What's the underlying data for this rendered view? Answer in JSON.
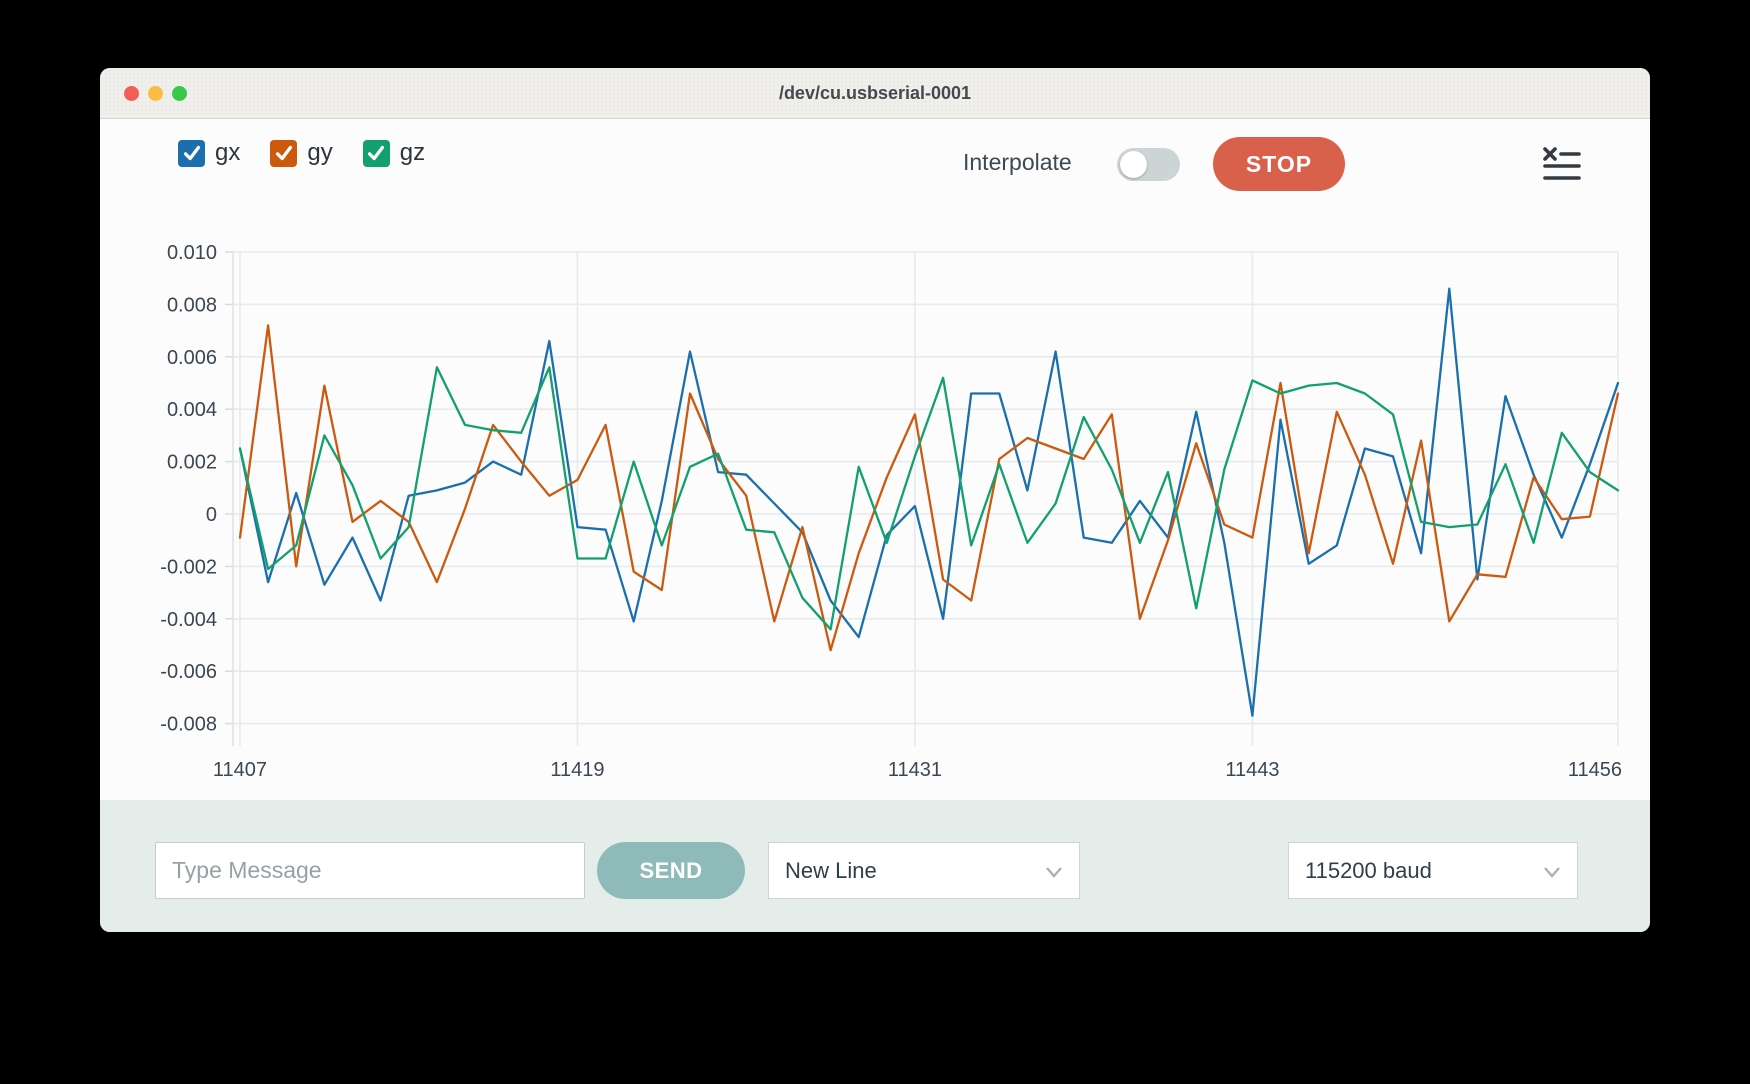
{
  "window": {
    "title": "/dev/cu.usbserial-0001"
  },
  "legend": {
    "items": [
      {
        "label": "gx",
        "color": "#1b6fad",
        "checked": true
      },
      {
        "label": "gy",
        "color": "#cc5a0e",
        "checked": true
      },
      {
        "label": "gz",
        "color": "#12a06e",
        "checked": true
      }
    ]
  },
  "controls": {
    "interpolate_label": "Interpolate",
    "interpolate_on": false,
    "stop_label": "STOP",
    "menu_icon": "clear-list-icon"
  },
  "bottom": {
    "message_placeholder": "Type Message",
    "send_label": "SEND",
    "line_ending": "New Line",
    "baud": "115200 baud"
  },
  "chart_data": {
    "type": "line",
    "title": "",
    "xlabel": "",
    "ylabel": "",
    "grid": true,
    "legend_position": "top-left-checkboxes",
    "xlim": [
      11407,
      11456
    ],
    "ylim": [
      -0.008,
      0.01
    ],
    "xticks": [
      11407,
      11419,
      11431,
      11443,
      11456
    ],
    "xtick_labels": [
      "11407",
      "11419",
      "11431",
      "11443",
      "11456"
    ],
    "yticks": [
      0.01,
      0.008,
      0.006,
      0.004,
      0.002,
      0,
      -0.002,
      -0.004,
      -0.006,
      -0.008
    ],
    "ytick_labels": [
      "0.010",
      "0.008",
      "0.006",
      "0.004",
      "0.002",
      "0",
      "-0.002",
      "-0.004",
      "-0.006",
      "-0.008"
    ],
    "x": [
      11407,
      11408,
      11409,
      11410,
      11411,
      11412,
      11413,
      11414,
      11415,
      11416,
      11417,
      11418,
      11419,
      11420,
      11421,
      11422,
      11423,
      11424,
      11425,
      11426,
      11427,
      11428,
      11429,
      11430,
      11431,
      11432,
      11433,
      11434,
      11435,
      11436,
      11437,
      11438,
      11439,
      11440,
      11441,
      11442,
      11443,
      11444,
      11445,
      11446,
      11447,
      11448,
      11449,
      11450,
      11451,
      11452,
      11453,
      11454,
      11455,
      11456
    ],
    "series": [
      {
        "name": "gx",
        "color": "#1b6fad",
        "values": [
          0.0025,
          -0.0026,
          0.0008,
          -0.0027,
          -0.0009,
          -0.0033,
          0.0007,
          0.0009,
          0.0012,
          0.002,
          0.0015,
          0.0066,
          -0.0005,
          -0.0006,
          -0.0041,
          0.0005,
          0.0062,
          0.0016,
          0.0015,
          0.0004,
          -0.0007,
          -0.0033,
          -0.0047,
          -0.0008,
          0.0003,
          -0.004,
          0.0046,
          0.0046,
          0.0009,
          0.0062,
          -0.0009,
          -0.0011,
          0.0005,
          -0.0009,
          0.0039,
          -0.0011,
          -0.0077,
          0.0036,
          -0.0019,
          -0.0012,
          0.0025,
          0.0022,
          -0.0015,
          0.0086,
          -0.0025,
          0.0045,
          0.0015,
          -0.0009,
          0.0019,
          0.005
        ]
      },
      {
        "name": "gy",
        "color": "#cc5a0e",
        "values": [
          -0.0009,
          0.0072,
          -0.002,
          0.0049,
          -0.0003,
          0.0005,
          -0.0003,
          -0.0026,
          0.0002,
          0.0034,
          0.002,
          0.0007,
          0.0013,
          0.0034,
          -0.0022,
          -0.0029,
          0.0046,
          0.0021,
          0.0007,
          -0.0041,
          -0.0005,
          -0.0052,
          -0.0015,
          0.0014,
          0.0038,
          -0.0025,
          -0.0033,
          0.0021,
          0.0029,
          0.0025,
          0.0021,
          0.0038,
          -0.004,
          -0.001,
          0.0027,
          -0.0004,
          -0.0009,
          0.005,
          -0.0015,
          0.0039,
          0.0015,
          -0.0019,
          0.0028,
          -0.0041,
          -0.0023,
          -0.0024,
          0.0014,
          -0.0002,
          -0.0001,
          0.0046
        ]
      },
      {
        "name": "gz",
        "color": "#12a06e",
        "values": [
          0.0025,
          -0.0021,
          -0.0012,
          0.003,
          0.0011,
          -0.0017,
          -0.0005,
          0.0056,
          0.0034,
          0.0032,
          0.0031,
          0.0056,
          -0.0017,
          -0.0017,
          0.002,
          -0.0012,
          0.0018,
          0.0023,
          -0.0006,
          -0.0007,
          -0.0032,
          -0.0044,
          0.0018,
          -0.0011,
          0.0022,
          0.0052,
          -0.0012,
          0.0019,
          -0.0011,
          0.0004,
          0.0037,
          0.0017,
          -0.0011,
          0.0016,
          -0.0036,
          0.0017,
          0.0051,
          0.0046,
          0.0049,
          0.005,
          0.0046,
          0.0038,
          -0.0003,
          -0.0005,
          -0.0004,
          0.0019,
          -0.0011,
          0.0031,
          0.0016,
          0.0009
        ]
      }
    ]
  },
  "style": {
    "grid_color": "#e7eaec",
    "axis_text_color": "#3b4750"
  }
}
